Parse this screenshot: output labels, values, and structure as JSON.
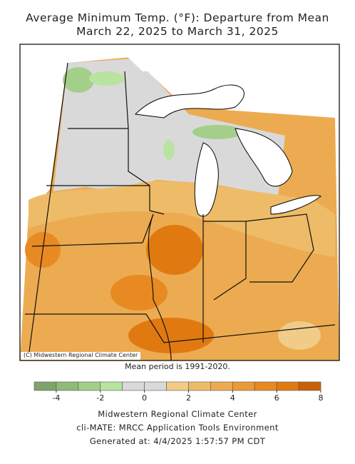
{
  "title": "Average Minimum Temp. (°F): Departure from Mean",
  "subtitle": "March 22, 2025 to March 31, 2025",
  "map": {
    "credit": "(C) Midwestern Regional Climate Center"
  },
  "note": "Mean period is 1991-2020.",
  "colorbar": {
    "bins": [
      -5,
      -4,
      -3,
      -2,
      -1,
      0,
      1,
      2,
      3,
      4,
      5,
      6,
      7,
      8
    ],
    "colors": [
      "#7fa36b",
      "#8fbb78",
      "#a3cf8a",
      "#b8e3a0",
      "#d9d9d9",
      "#d9d9d9",
      "#f0cc88",
      "#eebc68",
      "#ecab50",
      "#ea9a38",
      "#e88a22",
      "#e07a10",
      "#c86008"
    ],
    "ticks": [
      -4,
      -2,
      0,
      2,
      4,
      6,
      8
    ]
  },
  "footer": [
    "Midwestern Regional Climate Center",
    "cli-MATE: MRCC Application Tools Environment",
    "Generated at: 4/4/2025 1:57:57 PM CDT"
  ]
}
